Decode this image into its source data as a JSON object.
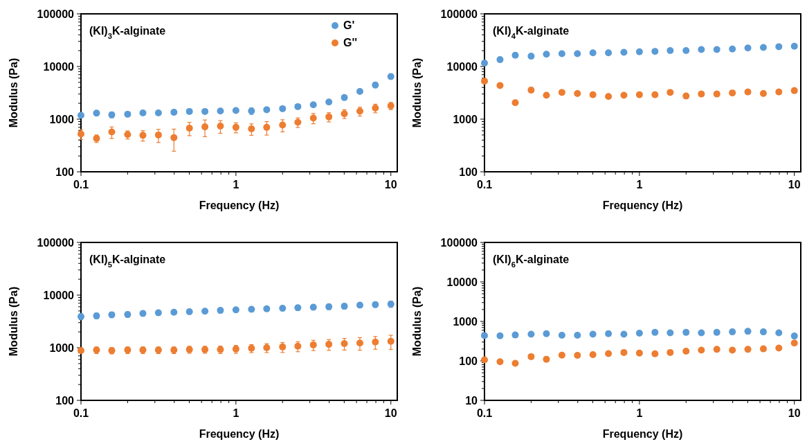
{
  "chart_data": [
    {
      "type": "scatter",
      "title": "(KI)$_{3}$K-alginate",
      "xlabel": "Frequency (Hz)",
      "ylabel": "Modulus (Pa)",
      "log": "xy",
      "marker": "circle",
      "legend": "top right",
      "x": [
        0.1,
        0.126,
        0.158,
        0.2,
        0.251,
        0.316,
        0.398,
        0.501,
        0.631,
        0.794,
        1,
        1.26,
        1.58,
        2,
        2.51,
        3.16,
        3.98,
        5.01,
        6.31,
        7.94,
        10
      ],
      "xlim": [
        0.1,
        11
      ],
      "ylim": [
        100,
        100000
      ],
      "xticks": [
        0.1,
        {
          "value": 0.2,
          "label": null
        },
        {
          "value": 0.3,
          "label": null
        },
        {
          "value": 0.4,
          "label": null
        },
        {
          "value": 0.5,
          "label": null
        },
        {
          "value": 0.6,
          "label": null
        },
        {
          "value": 0.7,
          "label": null
        },
        {
          "value": 0.8,
          "label": null
        },
        {
          "value": 0.9,
          "label": null
        },
        1,
        {
          "value": 2,
          "label": null
        },
        {
          "value": 3,
          "label": null
        },
        {
          "value": 4,
          "label": null
        },
        {
          "value": 5,
          "label": null
        },
        {
          "value": 6,
          "label": null
        },
        {
          "value": 7,
          "label": null
        },
        {
          "value": 8,
          "label": null
        },
        {
          "value": 9,
          "label": null
        },
        10
      ],
      "yticks": [
        100,
        {
          "value": 200,
          "label": null
        },
        {
          "value": 300,
          "label": null
        },
        {
          "value": 400,
          "label": null
        },
        {
          "value": 500,
          "label": null
        },
        {
          "value": 600,
          "label": null
        },
        {
          "value": 700,
          "label": null
        },
        {
          "value": 800,
          "label": null
        },
        {
          "value": 900,
          "label": null
        },
        1000,
        {
          "value": 2000,
          "label": null
        },
        {
          "value": 3000,
          "label": null
        },
        {
          "value": 4000,
          "label": null
        },
        {
          "value": 5000,
          "label": null
        },
        {
          "value": 6000,
          "label": null
        },
        {
          "value": 7000,
          "label": null
        },
        {
          "value": 8000,
          "label": null
        },
        {
          "value": 9000,
          "label": null
        },
        10000,
        {
          "value": 20000,
          "label": null
        },
        {
          "value": 30000,
          "label": null
        },
        {
          "value": 40000,
          "label": null
        },
        {
          "value": 50000,
          "label": null
        },
        {
          "value": 60000,
          "label": null
        },
        {
          "value": 70000,
          "label": null
        },
        {
          "value": 80000,
          "label": null
        },
        {
          "value": 90000,
          "label": null
        },
        100000
      ],
      "series": [
        {
          "name": "G'",
          "color": "#5b9bd5",
          "values": [
            1180,
            1300,
            1210,
            1240,
            1310,
            1310,
            1350,
            1400,
            1400,
            1430,
            1460,
            1430,
            1510,
            1580,
            1730,
            1880,
            2120,
            2570,
            3360,
            4450,
            6450
          ],
          "errors": [
            100,
            100,
            150,
            100,
            80,
            100,
            100,
            80,
            80,
            80,
            80,
            200,
            100,
            80,
            80,
            120,
            100,
            100,
            300,
            500,
            700
          ]
        },
        {
          "name": "G''",
          "color": "#ed7d31",
          "values": [
            521,
            430,
            570,
            509,
            493,
            500,
            446,
            675,
            714,
            738,
            698,
            653,
            698,
            773,
            874,
            1046,
            1107,
            1266,
            1416,
            1620,
            1795
          ],
          "errors": [
            110,
            70,
            140,
            90,
            110,
            140,
            200,
            190,
            250,
            200,
            150,
            160,
            200,
            200,
            180,
            230,
            220,
            240,
            270,
            300,
            280
          ]
        }
      ]
    },
    {
      "type": "scatter",
      "title": "(KI)$_{4}$K-alginate",
      "xlabel": "Frequency (Hz)",
      "ylabel": "Modulus (Pa)",
      "log": "xy",
      "marker": "circle",
      "x": [
        0.1,
        0.126,
        0.158,
        0.2,
        0.251,
        0.316,
        0.398,
        0.501,
        0.631,
        0.794,
        1,
        1.26,
        1.58,
        2,
        2.51,
        3.16,
        3.98,
        5.01,
        6.31,
        7.94,
        10
      ],
      "xlim": [
        0.1,
        11
      ],
      "ylim": [
        100,
        100000
      ],
      "xticks": [
        0.1,
        {
          "value": 0.2,
          "label": null
        },
        {
          "value": 0.3,
          "label": null
        },
        {
          "value": 0.4,
          "label": null
        },
        {
          "value": 0.5,
          "label": null
        },
        {
          "value": 0.6,
          "label": null
        },
        {
          "value": 0.7,
          "label": null
        },
        {
          "value": 0.8,
          "label": null
        },
        {
          "value": 0.9,
          "label": null
        },
        1,
        {
          "value": 2,
          "label": null
        },
        {
          "value": 3,
          "label": null
        },
        {
          "value": 4,
          "label": null
        },
        {
          "value": 5,
          "label": null
        },
        {
          "value": 6,
          "label": null
        },
        {
          "value": 7,
          "label": null
        },
        {
          "value": 8,
          "label": null
        },
        {
          "value": 9,
          "label": null
        },
        10
      ],
      "yticks": [
        100,
        {
          "value": 200,
          "label": null
        },
        {
          "value": 300,
          "label": null
        },
        {
          "value": 400,
          "label": null
        },
        {
          "value": 500,
          "label": null
        },
        {
          "value": 600,
          "label": null
        },
        {
          "value": 700,
          "label": null
        },
        {
          "value": 800,
          "label": null
        },
        {
          "value": 900,
          "label": null
        },
        1000,
        {
          "value": 2000,
          "label": null
        },
        {
          "value": 3000,
          "label": null
        },
        {
          "value": 4000,
          "label": null
        },
        {
          "value": 5000,
          "label": null
        },
        {
          "value": 6000,
          "label": null
        },
        {
          "value": 7000,
          "label": null
        },
        {
          "value": 8000,
          "label": null
        },
        {
          "value": 9000,
          "label": null
        },
        10000,
        {
          "value": 20000,
          "label": null
        },
        {
          "value": 30000,
          "label": null
        },
        {
          "value": 40000,
          "label": null
        },
        {
          "value": 50000,
          "label": null
        },
        {
          "value": 60000,
          "label": null
        },
        {
          "value": 70000,
          "label": null
        },
        {
          "value": 80000,
          "label": null
        },
        {
          "value": 90000,
          "label": null
        },
        100000
      ],
      "series": [
        {
          "color": "#5b9bd5",
          "values": [
            11600,
            13500,
            16400,
            15700,
            17100,
            17500,
            17500,
            18200,
            18200,
            18600,
            19000,
            19400,
            20100,
            20100,
            21000,
            21000,
            21500,
            22500,
            23000,
            23800,
            24300
          ]
        },
        {
          "color": "#ed7d31",
          "values": [
            5270,
            4360,
            2050,
            3560,
            2840,
            3220,
            3070,
            2910,
            2690,
            2840,
            2910,
            2910,
            3220,
            2750,
            3010,
            3010,
            3150,
            3290,
            3070,
            3290,
            3480
          ]
        }
      ]
    },
    {
      "type": "scatter",
      "title": "(KI)$_{5}$K-alginate",
      "xlabel": "Frequency (Hz)",
      "ylabel": "Modulus (Pa)",
      "log": "xy",
      "marker": "circle",
      "x": [
        0.1,
        0.126,
        0.158,
        0.2,
        0.251,
        0.316,
        0.398,
        0.501,
        0.631,
        0.794,
        1,
        1.26,
        1.58,
        2,
        2.51,
        3.16,
        3.98,
        5.01,
        6.31,
        7.94,
        10
      ],
      "xlim": [
        0.1,
        11
      ],
      "ylim": [
        100,
        100000
      ],
      "xticks": [
        0.1,
        {
          "value": 0.2,
          "label": null
        },
        {
          "value": 0.3,
          "label": null
        },
        {
          "value": 0.4,
          "label": null
        },
        {
          "value": 0.5,
          "label": null
        },
        {
          "value": 0.6,
          "label": null
        },
        {
          "value": 0.7,
          "label": null
        },
        {
          "value": 0.8,
          "label": null
        },
        {
          "value": 0.9,
          "label": null
        },
        1,
        {
          "value": 2,
          "label": null
        },
        {
          "value": 3,
          "label": null
        },
        {
          "value": 4,
          "label": null
        },
        {
          "value": 5,
          "label": null
        },
        {
          "value": 6,
          "label": null
        },
        {
          "value": 7,
          "label": null
        },
        {
          "value": 8,
          "label": null
        },
        {
          "value": 9,
          "label": null
        },
        10
      ],
      "yticks": [
        100,
        {
          "value": 200,
          "label": null
        },
        {
          "value": 300,
          "label": null
        },
        {
          "value": 400,
          "label": null
        },
        {
          "value": 500,
          "label": null
        },
        {
          "value": 600,
          "label": null
        },
        {
          "value": 700,
          "label": null
        },
        {
          "value": 800,
          "label": null
        },
        {
          "value": 900,
          "label": null
        },
        1000,
        {
          "value": 2000,
          "label": null
        },
        {
          "value": 3000,
          "label": null
        },
        {
          "value": 4000,
          "label": null
        },
        {
          "value": 5000,
          "label": null
        },
        {
          "value": 6000,
          "label": null
        },
        {
          "value": 7000,
          "label": null
        },
        {
          "value": 8000,
          "label": null
        },
        {
          "value": 9000,
          "label": null
        },
        10000,
        {
          "value": 20000,
          "label": null
        },
        {
          "value": 30000,
          "label": null
        },
        {
          "value": 40000,
          "label": null
        },
        {
          "value": 50000,
          "label": null
        },
        {
          "value": 60000,
          "label": null
        },
        {
          "value": 70000,
          "label": null
        },
        {
          "value": 80000,
          "label": null
        },
        {
          "value": 90000,
          "label": null
        },
        100000
      ],
      "series": [
        {
          "color": "#5b9bd5",
          "values": [
            3900,
            4040,
            4230,
            4280,
            4470,
            4620,
            4730,
            4840,
            4950,
            5120,
            5240,
            5360,
            5480,
            5610,
            5740,
            5870,
            6000,
            6140,
            6430,
            6580,
            6730
          ],
          "errors": [
            500,
            500,
            500,
            500,
            500,
            500,
            500,
            500,
            500,
            550,
            550,
            550,
            550,
            600,
            650,
            650,
            700,
            700,
            700,
            750,
            900
          ]
        },
        {
          "color": "#ed7d31",
          "values": [
            883,
            903,
            883,
            903,
            903,
            903,
            903,
            924,
            924,
            924,
            945,
            977,
            1000,
            1035,
            1070,
            1133,
            1160,
            1200,
            1227,
            1283,
            1328
          ],
          "errors": [
            80,
            130,
            120,
            130,
            130,
            130,
            130,
            140,
            140,
            150,
            160,
            170,
            190,
            220,
            230,
            250,
            270,
            300,
            330,
            350,
            400
          ]
        }
      ]
    },
    {
      "type": "scatter",
      "title": "(KI)$_{6}$K-alginate",
      "xlabel": "Frequency (Hz)",
      "ylabel": "Modulus (Pa)",
      "log": "xy",
      "marker": "circle",
      "x": [
        0.1,
        0.126,
        0.158,
        0.2,
        0.251,
        0.316,
        0.398,
        0.501,
        0.631,
        0.794,
        1,
        1.26,
        1.58,
        2,
        2.51,
        3.16,
        3.98,
        5.01,
        6.31,
        7.94,
        10
      ],
      "xlim": [
        0.1,
        11
      ],
      "ylim": [
        10,
        100000
      ],
      "xticks": [
        0.1,
        {
          "value": 0.2,
          "label": null
        },
        {
          "value": 0.3,
          "label": null
        },
        {
          "value": 0.4,
          "label": null
        },
        {
          "value": 0.5,
          "label": null
        },
        {
          "value": 0.6,
          "label": null
        },
        {
          "value": 0.7,
          "label": null
        },
        {
          "value": 0.8,
          "label": null
        },
        {
          "value": 0.9,
          "label": null
        },
        1,
        {
          "value": 2,
          "label": null
        },
        {
          "value": 3,
          "label": null
        },
        {
          "value": 4,
          "label": null
        },
        {
          "value": 5,
          "label": null
        },
        {
          "value": 6,
          "label": null
        },
        {
          "value": 7,
          "label": null
        },
        {
          "value": 8,
          "label": null
        },
        {
          "value": 9,
          "label": null
        },
        10
      ],
      "yticks": [
        10,
        {
          "value": 20,
          "label": null
        },
        {
          "value": 30,
          "label": null
        },
        {
          "value": 40,
          "label": null
        },
        {
          "value": 50,
          "label": null
        },
        {
          "value": 60,
          "label": null
        },
        {
          "value": 70,
          "label": null
        },
        {
          "value": 80,
          "label": null
        },
        {
          "value": 90,
          "label": null
        },
        100,
        {
          "value": 200,
          "label": null
        },
        {
          "value": 300,
          "label": null
        },
        {
          "value": 400,
          "label": null
        },
        {
          "value": 500,
          "label": null
        },
        {
          "value": 600,
          "label": null
        },
        {
          "value": 700,
          "label": null
        },
        {
          "value": 800,
          "label": null
        },
        {
          "value": 900,
          "label": null
        },
        1000,
        {
          "value": 2000,
          "label": null
        },
        {
          "value": 3000,
          "label": null
        },
        {
          "value": 4000,
          "label": null
        },
        {
          "value": 5000,
          "label": null
        },
        {
          "value": 6000,
          "label": null
        },
        {
          "value": 7000,
          "label": null
        },
        {
          "value": 8000,
          "label": null
        },
        {
          "value": 9000,
          "label": null
        },
        10000,
        {
          "value": 20000,
          "label": null
        },
        {
          "value": 30000,
          "label": null
        },
        {
          "value": 40000,
          "label": null
        },
        {
          "value": 50000,
          "label": null
        },
        {
          "value": 60000,
          "label": null
        },
        {
          "value": 70000,
          "label": null
        },
        {
          "value": 80000,
          "label": null
        },
        {
          "value": 90000,
          "label": null
        },
        100000
      ],
      "series": [
        {
          "color": "#5b9bd5",
          "values": [
            438,
            433,
            453,
            474,
            489,
            446,
            446,
            474,
            489,
            474,
            504,
            527,
            512,
            527,
            512,
            527,
            543,
            560,
            543,
            512,
            426
          ]
        },
        {
          "color": "#ed7d31",
          "values": [
            106,
            95,
            87,
            128,
            110,
            140,
            138,
            144,
            153,
            163,
            158,
            151,
            163,
            176,
            187,
            196,
            187,
            196,
            202,
            211,
            282
          ]
        }
      ]
    }
  ]
}
